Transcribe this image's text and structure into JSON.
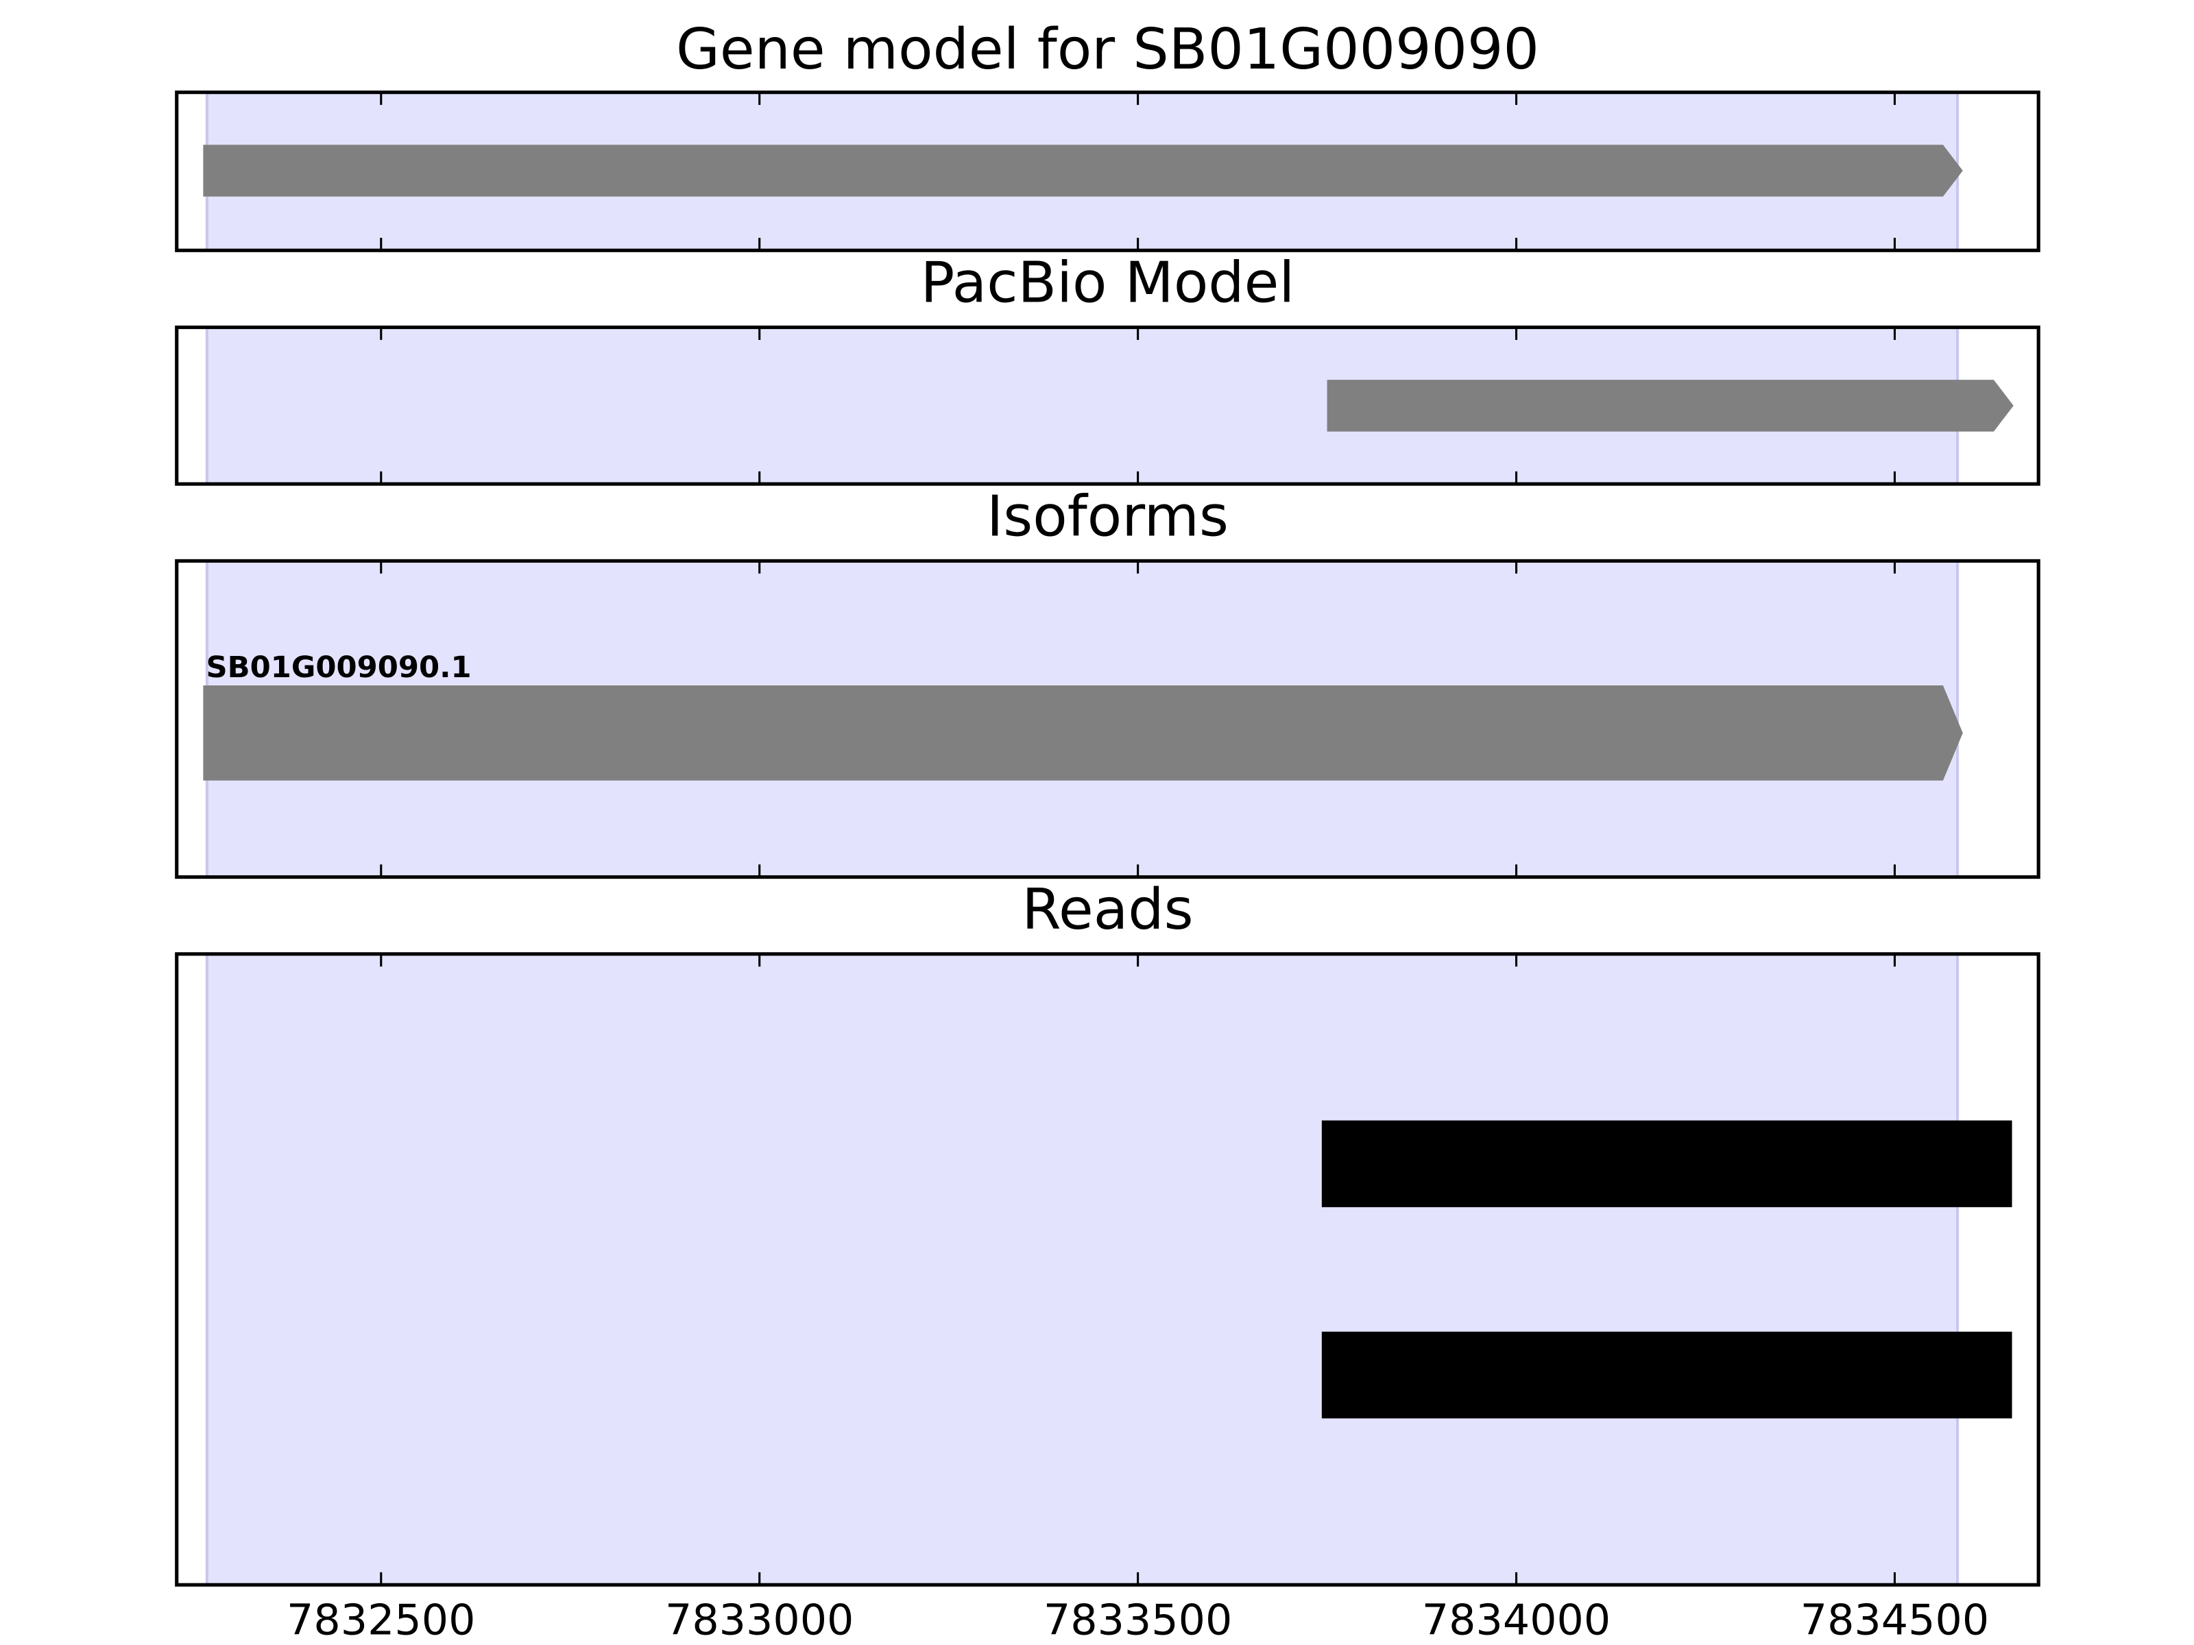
{
  "chart_data": [
    {
      "type": "track",
      "title": "Gene model for SB01G009090",
      "xlim": [
        7832230,
        7834690
      ],
      "xticks": [
        7832500,
        7833000,
        7833500,
        7834000,
        7834500
      ],
      "highlight": [
        7832270,
        7834583
      ],
      "highlight_color": "#e3e3fd",
      "color": "#808080",
      "features": [
        {
          "start": 7832265,
          "end": 7834590
        }
      ]
    },
    {
      "type": "track",
      "title": "PacBio Model",
      "xlim": [
        7832230,
        7834690
      ],
      "xticks": [
        7832500,
        7833000,
        7833500,
        7834000,
        7834500
      ],
      "highlight": [
        7832270,
        7834583
      ],
      "highlight_color": "#e3e3fd",
      "color": "#808080",
      "features": [
        {
          "start": 7833750,
          "end": 7834657
        }
      ]
    },
    {
      "type": "track",
      "title": "Isoforms",
      "xlim": [
        7832230,
        7834690
      ],
      "xticks": [
        7832500,
        7833000,
        7833500,
        7834000,
        7834500
      ],
      "highlight": [
        7832270,
        7834583
      ],
      "highlight_color": "#e3e3fd",
      "color": "#808080",
      "features": [
        {
          "label": "SB01G009090.1",
          "start": 7832265,
          "end": 7834590
        }
      ]
    },
    {
      "type": "reads",
      "title": "Reads",
      "xlim": [
        7832230,
        7834690
      ],
      "xticks": [
        7832500,
        7833000,
        7833500,
        7834000,
        7834500
      ],
      "highlight": [
        7832270,
        7834583
      ],
      "highlight_color": "#e3e3fd",
      "color": "#000000",
      "features": [
        {
          "start": 7833743,
          "end": 7834655
        },
        {
          "start": 7833743,
          "end": 7834655
        }
      ]
    }
  ]
}
